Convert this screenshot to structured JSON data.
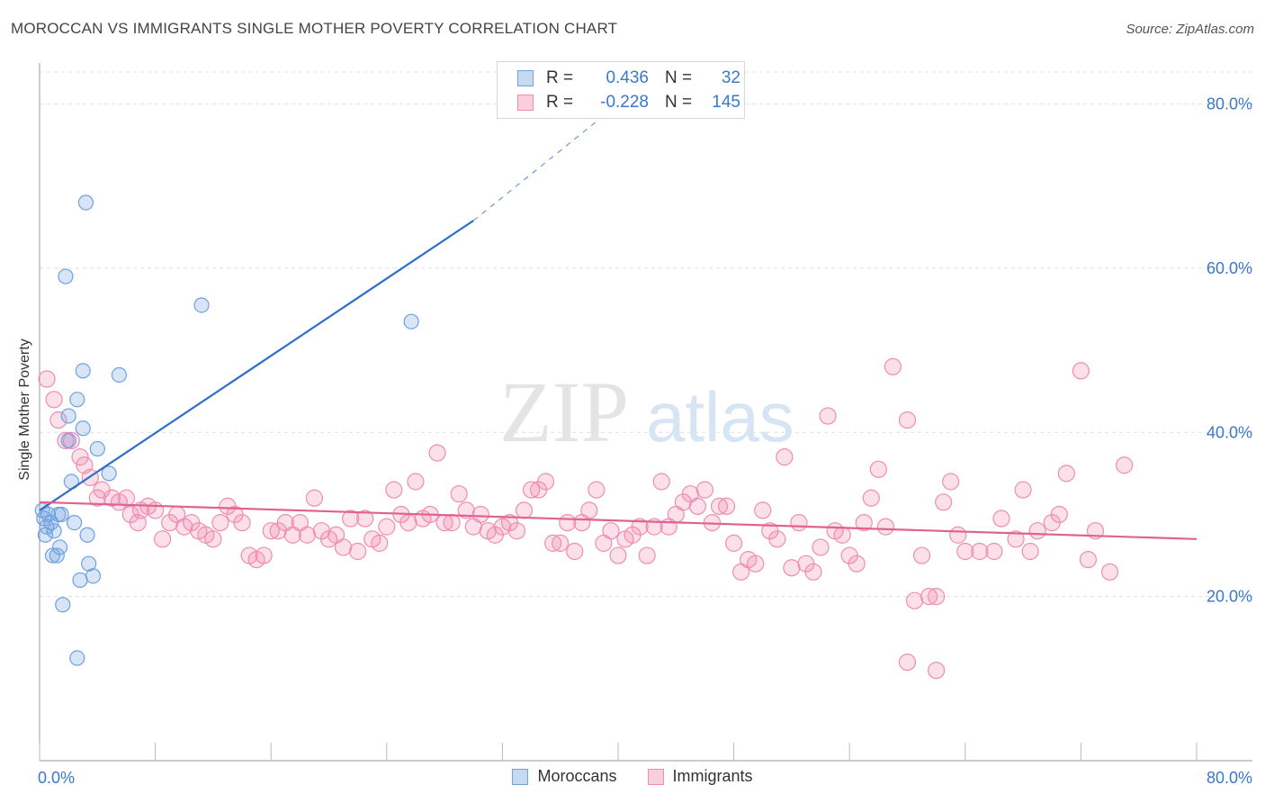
{
  "title": "MOROCCAN VS IMMIGRANTS SINGLE MOTHER POVERTY CORRELATION CHART",
  "source": "Source: ZipAtlas.com",
  "watermark": {
    "zip": "ZIP",
    "atlas": "atlas"
  },
  "legend_top": {
    "rows": [
      {
        "r_label": "R =",
        "r_value": "0.436",
        "n_label": "N =",
        "n_value": "32"
      },
      {
        "r_label": "R =",
        "r_value": "-0.228",
        "n_label": "N =",
        "n_value": "145"
      }
    ]
  },
  "chart_data": {
    "type": "scatter",
    "title": "MOROCCAN VS IMMIGRANTS SINGLE MOTHER POVERTY CORRELATION CHART",
    "xlabel": "",
    "ylabel": "Single Mother Poverty",
    "xlim": [
      0,
      80
    ],
    "ylim": [
      0,
      85
    ],
    "x_tick_labels": [
      "0.0%",
      "80.0%"
    ],
    "y_ticks": [
      20,
      40,
      60,
      80
    ],
    "y_tick_labels": [
      "20.0%",
      "40.0%",
      "60.0%",
      "80.0%"
    ],
    "grid": true,
    "legend_position": "bottom",
    "colors": {
      "moroccans": "#6fa0e0",
      "immigrants": "#f08db0",
      "moroccans_line": "#2f6fca",
      "immigrants_line": "#e0628e"
    },
    "series": [
      {
        "name": "Moroccans",
        "points": [
          [
            0.2,
            30.5
          ],
          [
            0.3,
            29.5
          ],
          [
            0.4,
            27.5
          ],
          [
            0.5,
            28.5
          ],
          [
            0.6,
            30
          ],
          [
            0.8,
            29
          ],
          [
            1,
            28
          ],
          [
            1.2,
            25
          ],
          [
            1.3,
            30
          ],
          [
            1.4,
            26
          ],
          [
            1.5,
            30
          ],
          [
            1.6,
            19
          ],
          [
            1.8,
            59
          ],
          [
            2,
            39
          ],
          [
            2,
            42
          ],
          [
            2.2,
            34
          ],
          [
            2.4,
            29
          ],
          [
            2.6,
            44
          ],
          [
            2.8,
            22
          ],
          [
            3,
            40.5
          ],
          [
            3,
            47.5
          ],
          [
            3.2,
            68
          ],
          [
            3.3,
            27.5
          ],
          [
            3.4,
            24
          ],
          [
            3.7,
            22.5
          ],
          [
            4,
            38
          ],
          [
            4.8,
            35
          ],
          [
            5.5,
            47
          ],
          [
            11.2,
            55.5
          ],
          [
            25.7,
            53.5
          ],
          [
            2.6,
            12.5
          ],
          [
            0.9,
            25
          ]
        ],
        "trend": {
          "x": [
            0,
            30
          ],
          "y": [
            30.5,
            65.8
          ],
          "dashed_to": [
            40,
            80
          ]
        }
      },
      {
        "name": "Immigrants",
        "points": [
          [
            0.5,
            46.5
          ],
          [
            1,
            44
          ],
          [
            1.3,
            41.5
          ],
          [
            1.8,
            39
          ],
          [
            2.2,
            39
          ],
          [
            2.8,
            37
          ],
          [
            3.1,
            36
          ],
          [
            3.5,
            34.5
          ],
          [
            4,
            32
          ],
          [
            4.3,
            33
          ],
          [
            5,
            32
          ],
          [
            5.5,
            31.5
          ],
          [
            6,
            32
          ],
          [
            6.3,
            30
          ],
          [
            6.8,
            29
          ],
          [
            7,
            30.5
          ],
          [
            7.5,
            31
          ],
          [
            8,
            30.5
          ],
          [
            8.5,
            27
          ],
          [
            9,
            29
          ],
          [
            9.5,
            30
          ],
          [
            10,
            28.5
          ],
          [
            10.5,
            29
          ],
          [
            11,
            28
          ],
          [
            11.5,
            27.5
          ],
          [
            12,
            27
          ],
          [
            12.5,
            29
          ],
          [
            13,
            31
          ],
          [
            13.5,
            30
          ],
          [
            14,
            29
          ],
          [
            14.5,
            25
          ],
          [
            15,
            24.5
          ],
          [
            15.5,
            25
          ],
          [
            16,
            28
          ],
          [
            16.5,
            28
          ],
          [
            17,
            29
          ],
          [
            17.5,
            27.5
          ],
          [
            18,
            29
          ],
          [
            18.5,
            27.5
          ],
          [
            19,
            32
          ],
          [
            19.5,
            28
          ],
          [
            20,
            27
          ],
          [
            20.5,
            27.5
          ],
          [
            21,
            26
          ],
          [
            21.5,
            29.5
          ],
          [
            22,
            25.5
          ],
          [
            22.5,
            29.5
          ],
          [
            23,
            27
          ],
          [
            23.5,
            26.5
          ],
          [
            24,
            28.5
          ],
          [
            24.5,
            33
          ],
          [
            25,
            30
          ],
          [
            25.5,
            29
          ],
          [
            26,
            34
          ],
          [
            26.5,
            29.5
          ],
          [
            27,
            30
          ],
          [
            27.5,
            37.5
          ],
          [
            28,
            29
          ],
          [
            28.5,
            29
          ],
          [
            29,
            32.5
          ],
          [
            29.5,
            30.5
          ],
          [
            30,
            28.5
          ],
          [
            30.5,
            30
          ],
          [
            31,
            28
          ],
          [
            31.5,
            27.5
          ],
          [
            32,
            28.5
          ],
          [
            32.5,
            29
          ],
          [
            33,
            28
          ],
          [
            33.5,
            30.5
          ],
          [
            34,
            33
          ],
          [
            34.5,
            33
          ],
          [
            35,
            34
          ],
          [
            35.5,
            26.5
          ],
          [
            36,
            26.5
          ],
          [
            36.5,
            29
          ],
          [
            37,
            25.5
          ],
          [
            37.5,
            29
          ],
          [
            38,
            30.5
          ],
          [
            38.5,
            33
          ],
          [
            39,
            26.5
          ],
          [
            39.5,
            28
          ],
          [
            40,
            25
          ],
          [
            40.5,
            27
          ],
          [
            41,
            27.5
          ],
          [
            41.5,
            28.5
          ],
          [
            42,
            25
          ],
          [
            42.5,
            28.5
          ],
          [
            43,
            34
          ],
          [
            43.5,
            28.5
          ],
          [
            44,
            30
          ],
          [
            44.5,
            31.5
          ],
          [
            45,
            32.5
          ],
          [
            45.5,
            31
          ],
          [
            46,
            33
          ],
          [
            46.5,
            29
          ],
          [
            47,
            31
          ],
          [
            47.5,
            31
          ],
          [
            48,
            26.5
          ],
          [
            48.5,
            23
          ],
          [
            49,
            24.5
          ],
          [
            49.5,
            24
          ],
          [
            50,
            30.5
          ],
          [
            50.5,
            28
          ],
          [
            51,
            27
          ],
          [
            51.5,
            37
          ],
          [
            52,
            23.5
          ],
          [
            52.5,
            29
          ],
          [
            53,
            24
          ],
          [
            53.5,
            23
          ],
          [
            54,
            26
          ],
          [
            54.5,
            42
          ],
          [
            55,
            28
          ],
          [
            55.5,
            27.5
          ],
          [
            56,
            25
          ],
          [
            56.5,
            24
          ],
          [
            57,
            29
          ],
          [
            57.5,
            32
          ],
          [
            58,
            35.5
          ],
          [
            58.5,
            28.5
          ],
          [
            59,
            48
          ],
          [
            60,
            41.5
          ],
          [
            60.5,
            19.5
          ],
          [
            61,
            25
          ],
          [
            61.5,
            20
          ],
          [
            62,
            20
          ],
          [
            62.5,
            31.5
          ],
          [
            63,
            34
          ],
          [
            63.5,
            27.5
          ],
          [
            64,
            25.5
          ],
          [
            65,
            25.5
          ],
          [
            66,
            25.5
          ],
          [
            66.5,
            29.5
          ],
          [
            67.5,
            27
          ],
          [
            68,
            33
          ],
          [
            68.5,
            25.5
          ],
          [
            69,
            28
          ],
          [
            70,
            29
          ],
          [
            70.5,
            30
          ],
          [
            71,
            35
          ],
          [
            72,
            47.5
          ],
          [
            72.5,
            24.5
          ],
          [
            73,
            28
          ],
          [
            74,
            23
          ],
          [
            75,
            36
          ],
          [
            60,
            12
          ],
          [
            62,
            11
          ]
        ],
        "trend": {
          "x": [
            0,
            80
          ],
          "y": [
            31.5,
            27
          ]
        }
      }
    ]
  },
  "bottom_legend": [
    {
      "label": "Moroccans",
      "color": "#6fa0e0"
    },
    {
      "label": "Immigrants",
      "color": "#f08db0"
    }
  ]
}
